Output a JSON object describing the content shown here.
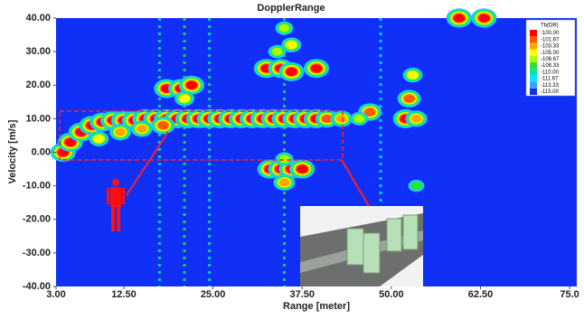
{
  "chart_data": {
    "type": "heatmap",
    "title": "DopplerRange",
    "x_label": "Range [meter]",
    "y_label": "Velocity [m/s]",
    "xlim": [
      3,
      76
    ],
    "ylim": [
      -40,
      40
    ],
    "xticks": [
      {
        "value": 3,
        "label": "3.00"
      },
      {
        "value": 12.5,
        "label": "12.50"
      },
      {
        "value": 25,
        "label": "25.00"
      },
      {
        "value": 37.5,
        "label": "37.50"
      },
      {
        "value": 50,
        "label": "50.00"
      },
      {
        "value": 62.5,
        "label": "62.50"
      },
      {
        "value": 75,
        "label": "75.0"
      }
    ],
    "yticks": [
      {
        "value": 40,
        "label": "40.00"
      },
      {
        "value": 30,
        "label": "30.00"
      },
      {
        "value": 20,
        "label": "20.00"
      },
      {
        "value": 10,
        "label": "10.00"
      },
      {
        "value": 0,
        "label": "0.00"
      },
      {
        "value": -10,
        "label": "-10.00"
      },
      {
        "value": -20,
        "label": "-20.00"
      },
      {
        "value": -30,
        "label": "-30.00"
      },
      {
        "value": -40,
        "label": "-40.00"
      }
    ],
    "background_color": "#1030f8",
    "colorbar": {
      "title": "Tb(DR)",
      "ticks": [
        {
          "value": -100,
          "label": "-100.00"
        },
        {
          "value": -101.67,
          "label": "-101.67"
        },
        {
          "value": -103.33,
          "label": "-103.33"
        },
        {
          "value": -105,
          "label": "-105.00"
        },
        {
          "value": -106.67,
          "label": "-106.67"
        },
        {
          "value": -108.33,
          "label": "-108.33"
        },
        {
          "value": -110,
          "label": "-110.00"
        },
        {
          "value": -111.67,
          "label": "-111.67"
        },
        {
          "value": -113.33,
          "label": "-113.33"
        },
        {
          "value": -115,
          "label": "-115.00"
        }
      ],
      "colors": [
        "#ff0000",
        "#ff5a00",
        "#ffa500",
        "#ffff00",
        "#a8ff00",
        "#30e030",
        "#00e8a0",
        "#00e8ff",
        "#3aa0ff",
        "#1030f8"
      ]
    },
    "streaks": {
      "x": [
        17.5,
        21,
        24.5,
        35,
        48.5
      ],
      "values": [
        -110,
        -108.33,
        -110,
        -108.33,
        -111.67
      ]
    },
    "points": {
      "x": [
        4,
        5,
        6.5,
        8,
        9.5,
        11,
        12.5,
        14,
        15.5,
        17,
        18.5,
        20,
        21.5,
        23,
        24.5,
        26,
        27.5,
        29,
        30.5,
        32,
        33.5,
        35,
        36.5,
        38,
        39.5,
        41,
        43,
        9,
        12,
        15,
        18,
        18.5,
        20.5,
        22,
        21,
        32.5,
        34.5,
        36,
        39.5,
        34,
        36,
        35,
        33,
        34.5,
        36,
        37.5,
        35,
        35,
        47,
        52.5,
        53,
        52,
        53.5,
        45.5,
        59.5,
        63,
        53.5
      ],
      "y": [
        0,
        3,
        6,
        8,
        9,
        9.5,
        9.5,
        9.5,
        10,
        10,
        10,
        10,
        10,
        10,
        10,
        10,
        10,
        10,
        10,
        10,
        10,
        10,
        10,
        10,
        10,
        10,
        10,
        4,
        6,
        7,
        8,
        19,
        19,
        20,
        16,
        25,
        25,
        24,
        25,
        30,
        32,
        37,
        -5,
        -5,
        -5,
        -5,
        -9,
        -2,
        12,
        16,
        23,
        10,
        10,
        10,
        40,
        40,
        -10
      ],
      "values": [
        -100,
        -100,
        -100,
        -100,
        -100,
        -100,
        -100,
        -100,
        -100,
        -100,
        -100,
        -100,
        -100,
        -100,
        -100,
        -100,
        -100,
        -100,
        -100,
        -100,
        -100,
        -100,
        -100,
        -100,
        -100,
        -101.67,
        -103.33,
        -105,
        -103.33,
        -103.33,
        -101.67,
        -100,
        -100,
        -100,
        -105,
        -100,
        -100,
        -100,
        -100,
        -106.67,
        -105,
        -106.67,
        -100,
        -100,
        -100,
        -100,
        -103.33,
        -106.67,
        -101.67,
        -101.67,
        -105,
        -100,
        -103.33,
        -106.67,
        -100,
        -100,
        -108.33
      ]
    }
  }
}
